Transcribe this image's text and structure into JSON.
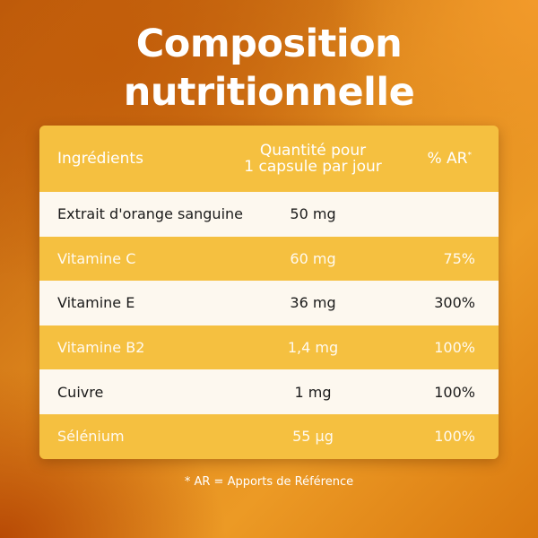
{
  "title": {
    "line1": "Composition",
    "line2": "nutritionnelle"
  },
  "table": {
    "headers": {
      "ingredient": "Ingrédients",
      "quantity_line1": "Quantité pour",
      "quantity_line2": "1 capsule par jour",
      "ar": "% AR",
      "ar_mark": "*"
    },
    "rows": [
      {
        "ingredient": "Extrait d'orange sanguine",
        "quantity": "50 mg",
        "ar": ""
      },
      {
        "ingredient": "Vitamine C",
        "quantity": "60 mg",
        "ar": "75%"
      },
      {
        "ingredient": "Vitamine E",
        "quantity": "36 mg",
        "ar": "300%"
      },
      {
        "ingredient": "Vitamine B2",
        "quantity": "1,4 mg",
        "ar": "100%"
      },
      {
        "ingredient": "Cuivre",
        "quantity": "1 mg",
        "ar": "100%"
      },
      {
        "ingredient": "Sélénium",
        "quantity": "55 µg",
        "ar": "100%"
      }
    ]
  },
  "footnote": "* AR = Apports de Référence",
  "colors": {
    "accent": "#f5c040",
    "row_light": "#fdf8ef",
    "background": "#e08a1e"
  }
}
